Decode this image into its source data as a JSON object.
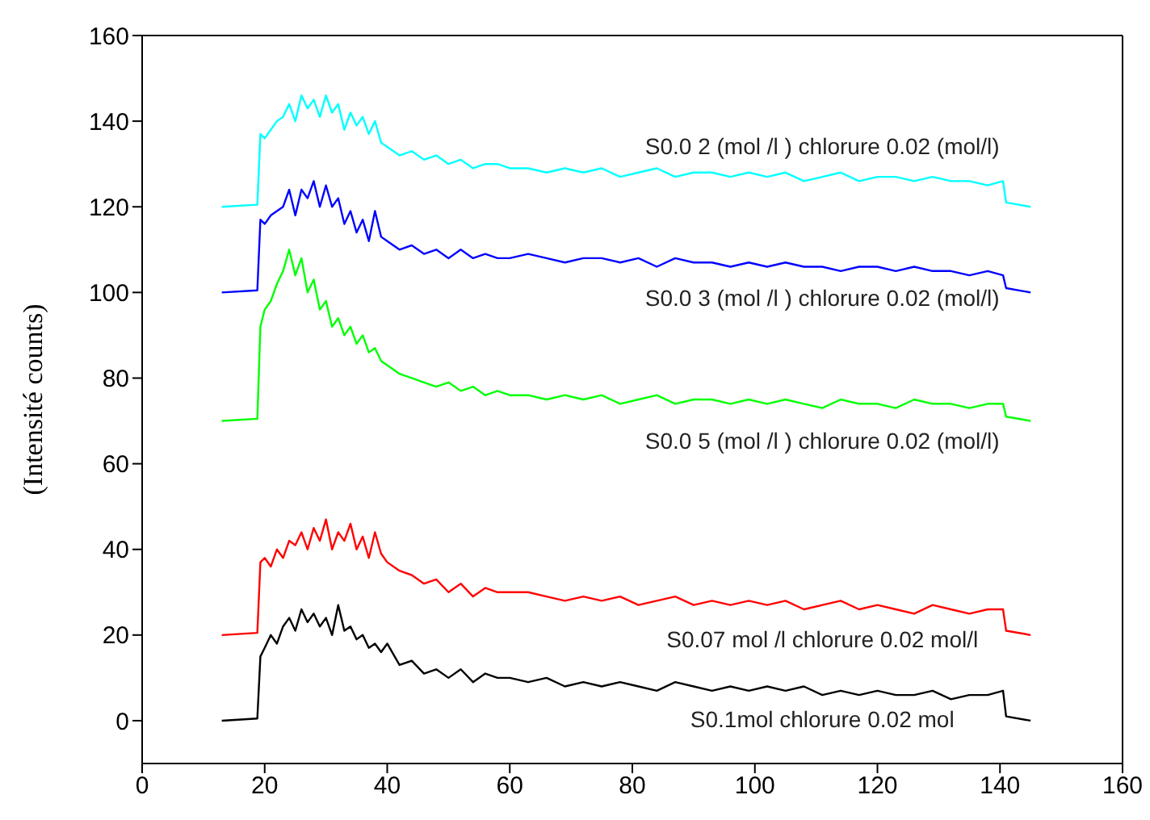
{
  "chart_data": {
    "type": "line",
    "ylabel": "(Intensité counts)",
    "xlim": [
      0,
      160
    ],
    "xticks": [
      0,
      20,
      40,
      60,
      80,
      100,
      120,
      140,
      160
    ],
    "ylim": [
      -10,
      160
    ],
    "yticks": [
      0,
      20,
      40,
      60,
      80,
      100,
      120,
      140,
      160
    ],
    "grid": false,
    "legend": false,
    "marker": "none",
    "line_style": "solid",
    "x": [
      13,
      18.8,
      19.3,
      20,
      21,
      22,
      23,
      24,
      25,
      26,
      27,
      28,
      29,
      30,
      31,
      32,
      33,
      34,
      35,
      36,
      37,
      38,
      39,
      40,
      42,
      44,
      46,
      48,
      50,
      52,
      54,
      56,
      58,
      60,
      63,
      66,
      69,
      72,
      75,
      78,
      81,
      84,
      87,
      90,
      93,
      96,
      99,
      102,
      105,
      108,
      111,
      114,
      117,
      120,
      123,
      126,
      129,
      132,
      135,
      138,
      140.5,
      141,
      145
    ],
    "series": [
      {
        "name": "S0.0 2 (mol /l ) chlorure 0.02 (mol/l)",
        "color": "#00ffff",
        "values": [
          120,
          120.5,
          137,
          136,
          138,
          140,
          141,
          144,
          140,
          146,
          143,
          145,
          141,
          146,
          142,
          144,
          138,
          142,
          139,
          141,
          137,
          140,
          135,
          134,
          132,
          133,
          131,
          132,
          130,
          131,
          129,
          130,
          130,
          129,
          129,
          128,
          129,
          128,
          129,
          127,
          128,
          129,
          127,
          128,
          128,
          127,
          128,
          127,
          128,
          126,
          127,
          128,
          126,
          127,
          127,
          126,
          127,
          126,
          126,
          125,
          126,
          121,
          120
        ]
      },
      {
        "name": "S0.0 3 (mol /l ) chlorure 0.02 (mol/l)",
        "color": "#0000ff",
        "values": [
          100,
          100.5,
          117,
          116,
          118,
          119,
          120,
          124,
          118,
          124,
          122,
          126,
          120,
          125,
          120,
          122,
          116,
          119,
          114,
          117,
          112,
          119,
          113,
          112,
          110,
          111,
          109,
          110,
          108,
          110,
          108,
          109,
          108,
          108,
          109,
          108,
          107,
          108,
          108,
          107,
          108,
          106,
          108,
          107,
          107,
          106,
          107,
          106,
          107,
          106,
          106,
          105,
          106,
          106,
          105,
          106,
          105,
          105,
          104,
          105,
          104,
          101,
          100
        ]
      },
      {
        "name": "S0.0 5 (mol /l ) chlorure 0.02 (mol/l)",
        "color": "#00ff00",
        "values": [
          70,
          70.5,
          92,
          96,
          98,
          102,
          105,
          110,
          104,
          108,
          100,
          103,
          96,
          98,
          92,
          94,
          90,
          92,
          88,
          90,
          86,
          87,
          84,
          83,
          81,
          80,
          79,
          78,
          79,
          77,
          78,
          76,
          77,
          76,
          76,
          75,
          76,
          75,
          76,
          74,
          75,
          76,
          74,
          75,
          75,
          74,
          75,
          74,
          75,
          74,
          73,
          75,
          74,
          74,
          73,
          75,
          74,
          74,
          73,
          74,
          74,
          71,
          70
        ]
      },
      {
        "name": "S0.07 mol /l chlorure 0.02 mol/l",
        "color": "#ff0000",
        "values": [
          20,
          20.5,
          37,
          38,
          36,
          40,
          38,
          42,
          41,
          44,
          40,
          45,
          42,
          47,
          40,
          44,
          42,
          46,
          40,
          43,
          38,
          44,
          39,
          37,
          35,
          34,
          32,
          33,
          30,
          32,
          29,
          31,
          30,
          30,
          30,
          29,
          28,
          29,
          28,
          29,
          27,
          28,
          29,
          27,
          28,
          27,
          28,
          27,
          28,
          26,
          27,
          28,
          26,
          27,
          26,
          25,
          27,
          26,
          25,
          26,
          26,
          21,
          20
        ]
      },
      {
        "name": "S0.1mol chlorure 0.02  mol",
        "color": "#000000",
        "values": [
          0,
          0.5,
          15,
          17,
          20,
          18,
          22,
          24,
          21,
          26,
          23,
          25,
          22,
          24,
          20,
          27,
          21,
          22,
          19,
          20,
          17,
          18,
          16,
          18,
          13,
          14,
          11,
          12,
          10,
          12,
          9,
          11,
          10,
          10,
          9,
          10,
          8,
          9,
          8,
          9,
          8,
          7,
          9,
          8,
          7,
          8,
          7,
          8,
          7,
          8,
          6,
          7,
          6,
          7,
          6,
          6,
          7,
          5,
          6,
          6,
          7,
          1,
          0
        ]
      }
    ]
  }
}
